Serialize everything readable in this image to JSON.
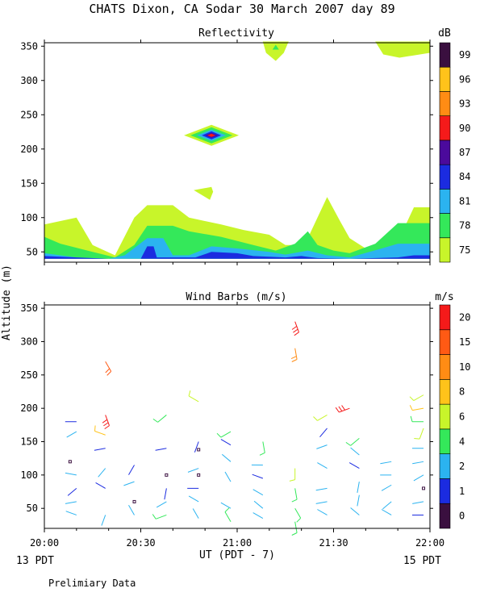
{
  "header": {
    "title": "CHATS Dixon, CA   Sodar  30 March 2007  day  89"
  },
  "footer": {
    "note": "Prelimiary Data"
  },
  "colors": {
    "refl_scale": [
      "#c8f52a",
      "#34e85a",
      "#2bb3f0",
      "#1b2be0",
      "#4b0a9c",
      "#f51a1a",
      "#ff8c14",
      "#ffc31a",
      "#3a0f3f"
    ],
    "wind_scale": [
      "#3a0f3f",
      "#1b2be0",
      "#2bb3f0",
      "#34e85a",
      "#c8f52a",
      "#ffc31a",
      "#ff8c14",
      "#ff5a14",
      "#f51a1a"
    ]
  },
  "chart_data": [
    {
      "type": "heatmap",
      "title": "Reflectivity",
      "ylabel": "Altitude (m)",
      "ylim": [
        35,
        355
      ],
      "xlim": [
        0,
        120
      ],
      "yticks": [
        50,
        100,
        150,
        200,
        250,
        300,
        350
      ],
      "colorbar": {
        "unit": "dB",
        "levels": [
          75,
          78,
          81,
          84,
          87,
          90,
          93,
          96,
          99
        ],
        "labels": [
          "75",
          "78",
          "81",
          "84",
          "87",
          "90",
          "93",
          "96",
          "99"
        ]
      },
      "layers": [
        {
          "level": 75,
          "tops": [
            [
              0,
              90
            ],
            [
              10,
              100
            ],
            [
              15,
              60
            ],
            [
              22,
              45
            ],
            [
              28,
              100
            ],
            [
              32,
              118
            ],
            [
              40,
              118
            ],
            [
              45,
              100
            ],
            [
              55,
              90
            ],
            [
              62,
              82
            ],
            [
              70,
              75
            ],
            [
              75,
              60
            ],
            [
              80,
              60
            ],
            [
              82,
              70
            ],
            [
              88,
              130
            ],
            [
              92,
              95
            ],
            [
              95,
              70
            ],
            [
              100,
              55
            ],
            [
              110,
              65
            ],
            [
              115,
              115
            ],
            [
              120,
              115
            ]
          ]
        },
        {
          "level": 78,
          "tops": [
            [
              0,
              72
            ],
            [
              5,
              62
            ],
            [
              15,
              50
            ],
            [
              22,
              42
            ],
            [
              28,
              60
            ],
            [
              32,
              88
            ],
            [
              40,
              88
            ],
            [
              45,
              80
            ],
            [
              55,
              72
            ],
            [
              65,
              60
            ],
            [
              72,
              52
            ],
            [
              78,
              62
            ],
            [
              82,
              80
            ],
            [
              85,
              60
            ],
            [
              90,
              52
            ],
            [
              95,
              48
            ],
            [
              103,
              62
            ],
            [
              110,
              92
            ],
            [
              120,
              92
            ]
          ]
        },
        {
          "level": 81,
          "tops": [
            [
              0,
              48
            ],
            [
              5,
              45
            ],
            [
              10,
              42
            ],
            [
              20,
              40
            ],
            [
              25,
              45
            ],
            [
              32,
              70
            ],
            [
              37,
              70
            ],
            [
              40,
              45
            ],
            [
              45,
              45
            ],
            [
              52,
              58
            ],
            [
              60,
              55
            ],
            [
              70,
              50
            ],
            [
              75,
              46
            ],
            [
              82,
              52
            ],
            [
              88,
              45
            ],
            [
              95,
              42
            ],
            [
              105,
              55
            ],
            [
              110,
              62
            ],
            [
              120,
              62
            ]
          ]
        },
        {
          "level": 84,
          "tops": [
            [
              0,
              44
            ],
            [
              10,
              42
            ],
            [
              20,
              40
            ],
            [
              30,
              40
            ],
            [
              32,
              58
            ],
            [
              34,
              58
            ],
            [
              35,
              42
            ],
            [
              47,
              42
            ],
            [
              52,
              50
            ],
            [
              60,
              48
            ],
            [
              65,
              44
            ],
            [
              75,
              42
            ],
            [
              80,
              44
            ],
            [
              85,
              41
            ],
            [
              95,
              40
            ],
            [
              110,
              42
            ],
            [
              115,
              45
            ],
            [
              120,
              45
            ]
          ]
        }
      ],
      "blobs": [
        {
          "x": 52,
          "y": 220,
          "level": 90,
          "note": "core"
        },
        {
          "x": 50,
          "y": 140,
          "level": 75
        },
        {
          "x": 72,
          "y": 345,
          "level": 78
        },
        {
          "x": 108,
          "y": 345,
          "level": 75
        }
      ]
    },
    {
      "type": "scatter",
      "title": "Wind Barbs (m/s)",
      "ylim": [
        20,
        355
      ],
      "xlim": [
        0,
        120
      ],
      "yticks": [
        50,
        100,
        150,
        200,
        250,
        300,
        350
      ],
      "xticks": [
        0,
        30,
        60,
        90,
        120
      ],
      "xtick_labels": [
        "20:00",
        "20:30",
        "21:00",
        "21:30",
        "22:00"
      ],
      "xlabel": "UT  (PDT - 7)",
      "x_left_note": "13 PDT",
      "x_right_note": "15 PDT",
      "colorbar": {
        "unit": "m/s",
        "labels": [
          "0",
          "1",
          "2",
          "4",
          "6",
          "8",
          "10",
          "15",
          "20"
        ]
      },
      "barbs": [
        {
          "x": 10,
          "y": 180,
          "dir": 270,
          "spd": 1
        },
        {
          "x": 10,
          "y": 165,
          "dir": 240,
          "spd": 3
        },
        {
          "x": 8,
          "y": 120,
          "dir": 0,
          "spd": 0
        },
        {
          "x": 10,
          "y": 100,
          "dir": 280,
          "spd": 2
        },
        {
          "x": 10,
          "y": 80,
          "dir": 230,
          "spd": 1
        },
        {
          "x": 10,
          "y": 60,
          "dir": 260,
          "spd": 3
        },
        {
          "x": 10,
          "y": 40,
          "dir": 290,
          "spd": 2
        },
        {
          "x": 19,
          "y": 270,
          "dir": 150,
          "spd": 15
        },
        {
          "x": 19,
          "y": 190,
          "dir": 160,
          "spd": 20
        },
        {
          "x": 19,
          "y": 160,
          "dir": 290,
          "spd": 8
        },
        {
          "x": 19,
          "y": 140,
          "dir": 260,
          "spd": 1
        },
        {
          "x": 19,
          "y": 110,
          "dir": 220,
          "spd": 3
        },
        {
          "x": 19,
          "y": 80,
          "dir": 300,
          "spd": 1
        },
        {
          "x": 19,
          "y": 40,
          "dir": 200,
          "spd": 3
        },
        {
          "x": 28,
          "y": 115,
          "dir": 210,
          "spd": 1
        },
        {
          "x": 28,
          "y": 90,
          "dir": 250,
          "spd": 2
        },
        {
          "x": 28,
          "y": 60,
          "dir": 0,
          "spd": 0
        },
        {
          "x": 28,
          "y": 40,
          "dir": 330,
          "spd": 2
        },
        {
          "x": 38,
          "y": 190,
          "dir": 230,
          "spd": 4
        },
        {
          "x": 38,
          "y": 140,
          "dir": 260,
          "spd": 1
        },
        {
          "x": 38,
          "y": 100,
          "dir": 0,
          "spd": 0
        },
        {
          "x": 38,
          "y": 80,
          "dir": 190,
          "spd": 1
        },
        {
          "x": 38,
          "y": 60,
          "dir": 240,
          "spd": 3
        },
        {
          "x": 38,
          "y": 40,
          "dir": 250,
          "spd": 4
        },
        {
          "x": 48,
          "y": 210,
          "dir": 300,
          "spd": 6
        },
        {
          "x": 48,
          "y": 150,
          "dir": 200,
          "spd": 1
        },
        {
          "x": 48,
          "y": 138,
          "dir": 0,
          "spd": 0
        },
        {
          "x": 48,
          "y": 110,
          "dir": 250,
          "spd": 3
        },
        {
          "x": 48,
          "y": 100,
          "dir": 0,
          "spd": 0
        },
        {
          "x": 48,
          "y": 80,
          "dir": 270,
          "spd": 1
        },
        {
          "x": 48,
          "y": 60,
          "dir": 300,
          "spd": 3
        },
        {
          "x": 48,
          "y": 35,
          "dir": 330,
          "spd": 3
        },
        {
          "x": 58,
          "y": 165,
          "dir": 240,
          "spd": 4
        },
        {
          "x": 58,
          "y": 145,
          "dir": 300,
          "spd": 1
        },
        {
          "x": 58,
          "y": 120,
          "dir": 310,
          "spd": 3
        },
        {
          "x": 58,
          "y": 90,
          "dir": 330,
          "spd": 3
        },
        {
          "x": 58,
          "y": 50,
          "dir": 300,
          "spd": 3
        },
        {
          "x": 58,
          "y": 30,
          "dir": 330,
          "spd": 4
        },
        {
          "x": 68,
          "y": 150,
          "dir": 170,
          "spd": 4
        },
        {
          "x": 68,
          "y": 115,
          "dir": 270,
          "spd": 3
        },
        {
          "x": 68,
          "y": 95,
          "dir": 290,
          "spd": 1
        },
        {
          "x": 68,
          "y": 70,
          "dir": 300,
          "spd": 3
        },
        {
          "x": 68,
          "y": 50,
          "dir": 310,
          "spd": 3
        },
        {
          "x": 68,
          "y": 35,
          "dir": 300,
          "spd": 3
        },
        {
          "x": 78,
          "y": 330,
          "dir": 160,
          "spd": 20
        },
        {
          "x": 78,
          "y": 290,
          "dir": 170,
          "spd": 10
        },
        {
          "x": 78,
          "y": 110,
          "dir": 180,
          "spd": 6
        },
        {
          "x": 78,
          "y": 80,
          "dir": 170,
          "spd": 4
        },
        {
          "x": 78,
          "y": 50,
          "dir": 150,
          "spd": 4
        },
        {
          "x": 78,
          "y": 30,
          "dir": 170,
          "spd": 4
        },
        {
          "x": 88,
          "y": 190,
          "dir": 240,
          "spd": 6
        },
        {
          "x": 88,
          "y": 170,
          "dir": 220,
          "spd": 1
        },
        {
          "x": 88,
          "y": 145,
          "dir": 250,
          "spd": 3
        },
        {
          "x": 88,
          "y": 110,
          "dir": 300,
          "spd": 3
        },
        {
          "x": 88,
          "y": 80,
          "dir": 260,
          "spd": 3
        },
        {
          "x": 88,
          "y": 60,
          "dir": 260,
          "spd": 3
        },
        {
          "x": 88,
          "y": 40,
          "dir": 300,
          "spd": 3
        },
        {
          "x": 95,
          "y": 200,
          "dir": 250,
          "spd": 20
        },
        {
          "x": 98,
          "y": 155,
          "dir": 230,
          "spd": 4
        },
        {
          "x": 98,
          "y": 130,
          "dir": 310,
          "spd": 3
        },
        {
          "x": 98,
          "y": 110,
          "dir": 300,
          "spd": 1
        },
        {
          "x": 98,
          "y": 90,
          "dir": 190,
          "spd": 3
        },
        {
          "x": 98,
          "y": 70,
          "dir": 190,
          "spd": 3
        },
        {
          "x": 98,
          "y": 40,
          "dir": 310,
          "spd": 3
        },
        {
          "x": 108,
          "y": 120,
          "dir": 260,
          "spd": 3
        },
        {
          "x": 108,
          "y": 100,
          "dir": 270,
          "spd": 3
        },
        {
          "x": 108,
          "y": 85,
          "dir": 240,
          "spd": 3
        },
        {
          "x": 108,
          "y": 60,
          "dir": 230,
          "spd": 3
        },
        {
          "x": 108,
          "y": 40,
          "dir": 300,
          "spd": 3
        },
        {
          "x": 118,
          "y": 220,
          "dir": 240,
          "spd": 6
        },
        {
          "x": 118,
          "y": 200,
          "dir": 260,
          "spd": 8
        },
        {
          "x": 118,
          "y": 180,
          "dir": 270,
          "spd": 4
        },
        {
          "x": 118,
          "y": 170,
          "dir": 200,
          "spd": 6
        },
        {
          "x": 118,
          "y": 140,
          "dir": 270,
          "spd": 3
        },
        {
          "x": 118,
          "y": 120,
          "dir": 260,
          "spd": 3
        },
        {
          "x": 118,
          "y": 100,
          "dir": 240,
          "spd": 3
        },
        {
          "x": 118,
          "y": 80,
          "dir": 0,
          "spd": 0
        },
        {
          "x": 118,
          "y": 60,
          "dir": 260,
          "spd": 3
        },
        {
          "x": 118,
          "y": 40,
          "dir": 270,
          "spd": 1
        }
      ]
    }
  ]
}
